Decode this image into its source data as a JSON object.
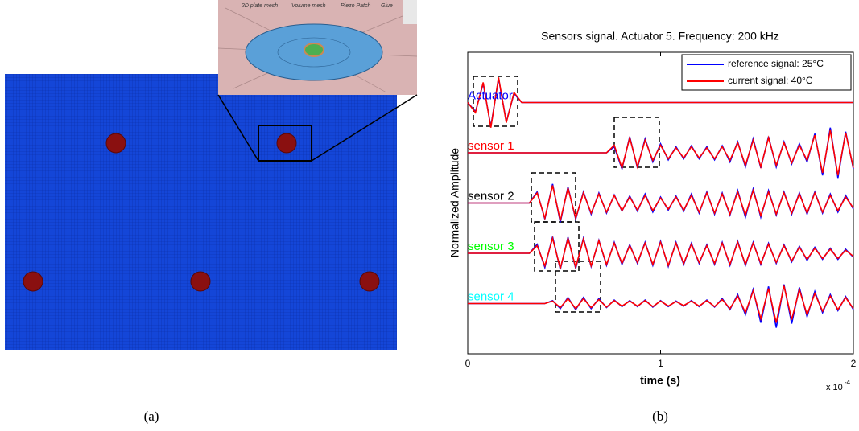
{
  "figure_a": {
    "inset_labels": [
      "2D plate mesh",
      "Volume mesh",
      "Piezo Patch",
      "Glue"
    ],
    "caption": "(a)"
  },
  "chart_data": {
    "type": "line",
    "title": "Sensors signal. Actuator 5. Frequency: 200 kHz",
    "xlabel": "time (s)",
    "ylabel": "Normalized Amplitude",
    "x_multiplier": "x 10",
    "x_exponent": "-4",
    "caption": "(b)",
    "xlim": [
      0,
      2
    ],
    "xticks": [
      0,
      1,
      2
    ],
    "ylim": [
      0,
      6
    ],
    "legend": "northeast",
    "series": [
      {
        "name": "reference signal: 25°C",
        "color": "#0000ff"
      },
      {
        "name": "current signal: 40°C",
        "color": "#ff0000"
      }
    ],
    "x": [
      0,
      0.04,
      0.08,
      0.12,
      0.16,
      0.2,
      0.24,
      0.28,
      0.32,
      0.36,
      0.4,
      0.44,
      0.48,
      0.52,
      0.56,
      0.6,
      0.64,
      0.68,
      0.72,
      0.76,
      0.8,
      0.84,
      0.88,
      0.92,
      0.96,
      1,
      1.04,
      1.08,
      1.12,
      1.16,
      1.2,
      1.24,
      1.28,
      1.32,
      1.36,
      1.4,
      1.44,
      1.48,
      1.52,
      1.56,
      1.6,
      1.64,
      1.68,
      1.72,
      1.76,
      1.8,
      1.84,
      1.88,
      1.92,
      1.96,
      2
    ],
    "traces": [
      {
        "label": "Actuator",
        "label_color": "#0000ff",
        "reference": [
          5,
          4.82,
          5.38,
          4.52,
          5.48,
          4.62,
          5.18,
          5,
          5,
          5,
          5,
          5,
          5,
          5,
          5,
          5,
          5,
          5,
          5,
          5,
          5,
          5,
          5,
          5,
          5,
          5,
          5,
          5,
          5,
          5,
          5,
          5,
          5,
          5,
          5,
          5,
          5,
          5,
          5,
          5,
          5,
          5,
          5,
          5,
          5,
          5,
          5,
          5,
          5,
          5,
          5
        ],
        "current": [
          5,
          4.8,
          5.4,
          4.5,
          5.5,
          4.6,
          5.2,
          5,
          5,
          5,
          5,
          5,
          5,
          5,
          5,
          5,
          5,
          5,
          5,
          5,
          5,
          5,
          5,
          5,
          5,
          5,
          5,
          5,
          5,
          5,
          5,
          5,
          5,
          5,
          5,
          5,
          5,
          5,
          5,
          5,
          5,
          5,
          5,
          5,
          5,
          5,
          5,
          5,
          5,
          5,
          5
        ]
      },
      {
        "label": "sensor 1",
        "label_color": "#ff0000",
        "reference": [
          4,
          4,
          4,
          4,
          4,
          4,
          4,
          4,
          4,
          4,
          4,
          4,
          4,
          4,
          4,
          4,
          4,
          4,
          4,
          4.12,
          3.68,
          4.32,
          3.7,
          4.28,
          3.82,
          4.18,
          3.86,
          4.12,
          3.88,
          4.14,
          3.88,
          4.12,
          3.86,
          4.14,
          3.82,
          4.22,
          3.72,
          4.28,
          3.7,
          4.32,
          3.72,
          4.22,
          3.78,
          4.18,
          3.82,
          4.38,
          3.55,
          4.5,
          3.5,
          4.42,
          3.68
        ],
        "current": [
          4,
          4,
          4,
          4,
          4,
          4,
          4,
          4,
          4,
          4,
          4,
          4,
          4,
          4,
          4,
          4,
          4,
          4,
          4,
          4.15,
          3.7,
          4.3,
          3.72,
          4.25,
          3.85,
          4.15,
          3.88,
          4.1,
          3.9,
          4.12,
          3.9,
          4.1,
          3.88,
          4.12,
          3.85,
          4.2,
          3.75,
          4.25,
          3.72,
          4.3,
          3.75,
          4.2,
          3.8,
          4.15,
          3.85,
          4.35,
          3.6,
          4.45,
          3.55,
          4.4,
          3.7
        ]
      },
      {
        "label": "sensor 2",
        "label_color": "#000000",
        "reference": [
          3,
          3,
          3,
          3,
          3,
          3,
          3,
          3,
          3,
          3.22,
          2.68,
          3.38,
          2.62,
          3.32,
          2.68,
          3.22,
          2.78,
          3.2,
          2.8,
          3.16,
          2.84,
          3.14,
          2.84,
          3.18,
          2.82,
          3.12,
          2.86,
          3.14,
          2.84,
          3.18,
          2.8,
          3.22,
          2.78,
          3.2,
          2.76,
          3.25,
          2.72,
          3.28,
          2.72,
          3.25,
          2.76,
          3.22,
          2.78,
          3.2,
          2.78,
          3.22,
          2.8,
          3.18,
          2.82,
          3.15,
          2.88
        ],
        "current": [
          3,
          3,
          3,
          3,
          3,
          3,
          3,
          3,
          3,
          3.2,
          2.7,
          3.35,
          2.65,
          3.3,
          2.7,
          3.2,
          2.8,
          3.18,
          2.82,
          3.15,
          2.85,
          3.12,
          2.86,
          3.15,
          2.85,
          3.1,
          2.88,
          3.12,
          2.86,
          3.15,
          2.82,
          3.2,
          2.8,
          3.18,
          2.78,
          3.22,
          2.76,
          3.25,
          2.75,
          3.22,
          2.78,
          3.2,
          2.8,
          3.18,
          2.8,
          3.2,
          2.82,
          3.15,
          2.85,
          3.12,
          2.9
        ]
      },
      {
        "label": "sensor 3",
        "label_color": "#00ff00",
        "reference": [
          2,
          2,
          2,
          2,
          2,
          2,
          2,
          2,
          2,
          2.18,
          1.72,
          2.33,
          1.68,
          2.32,
          1.7,
          2.3,
          1.74,
          2.26,
          1.76,
          2.22,
          1.78,
          2.17,
          1.8,
          2.22,
          1.76,
          2.24,
          1.74,
          2.22,
          1.78,
          2.2,
          1.8,
          2.17,
          1.78,
          2.22,
          1.76,
          2.24,
          1.76,
          2.22,
          1.78,
          2.2,
          1.8,
          2.17,
          1.83,
          2.14,
          1.86,
          2.12,
          1.88,
          2.1,
          1.88,
          2.08,
          1.92
        ],
        "current": [
          2,
          2,
          2,
          2,
          2,
          2,
          2,
          2,
          2,
          2.15,
          1.75,
          2.3,
          1.7,
          2.3,
          1.72,
          2.28,
          1.75,
          2.25,
          1.78,
          2.2,
          1.8,
          2.15,
          1.82,
          2.2,
          1.78,
          2.22,
          1.76,
          2.2,
          1.8,
          2.18,
          1.82,
          2.15,
          1.8,
          2.2,
          1.78,
          2.22,
          1.78,
          2.2,
          1.8,
          2.18,
          1.82,
          2.15,
          1.85,
          2.12,
          1.88,
          2.1,
          1.9,
          2.08,
          1.9,
          2.06,
          1.94
        ]
      },
      {
        "label": "sensor 4",
        "label_color": "#00ffff",
        "reference": [
          1,
          1,
          1,
          1,
          1,
          1,
          1,
          1,
          1,
          1,
          1,
          1.06,
          0.9,
          1.12,
          0.88,
          1.12,
          0.9,
          1.1,
          0.92,
          1.07,
          0.94,
          1.06,
          0.94,
          1.07,
          0.93,
          1.06,
          0.94,
          1.05,
          0.95,
          1.06,
          0.94,
          1.07,
          0.93,
          1.1,
          0.88,
          1.18,
          0.78,
          1.28,
          0.62,
          1.34,
          0.52,
          1.38,
          0.6,
          1.32,
          0.74,
          1.24,
          0.82,
          1.18,
          0.86,
          1.14,
          0.88
        ],
        "current": [
          1,
          1,
          1,
          1,
          1,
          1,
          1,
          1,
          1,
          1,
          1,
          1.05,
          0.92,
          1.1,
          0.9,
          1.1,
          0.92,
          1.08,
          0.93,
          1.06,
          0.95,
          1.05,
          0.95,
          1.06,
          0.94,
          1.05,
          0.95,
          1.04,
          0.96,
          1.05,
          0.95,
          1.06,
          0.94,
          1.08,
          0.9,
          1.15,
          0.82,
          1.25,
          0.7,
          1.3,
          0.62,
          1.35,
          0.68,
          1.28,
          0.78,
          1.2,
          0.85,
          1.15,
          0.88,
          1.12,
          0.9
        ]
      }
    ]
  }
}
